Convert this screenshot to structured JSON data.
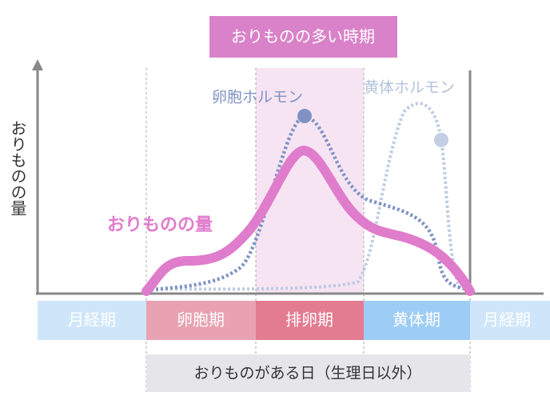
{
  "highlight_label": "おりものの多い時期",
  "y_axis_label": "おりものの量",
  "curve_labels": {
    "estrogen": "卵胞ホルモン",
    "progesterone": "黄体ホルモン",
    "discharge": "おりものの量"
  },
  "phases": [
    "月経期",
    "卵胞期",
    "排卵期",
    "黄体期",
    "月経期"
  ],
  "footer": "おりものがある日（生理日以外）"
}
